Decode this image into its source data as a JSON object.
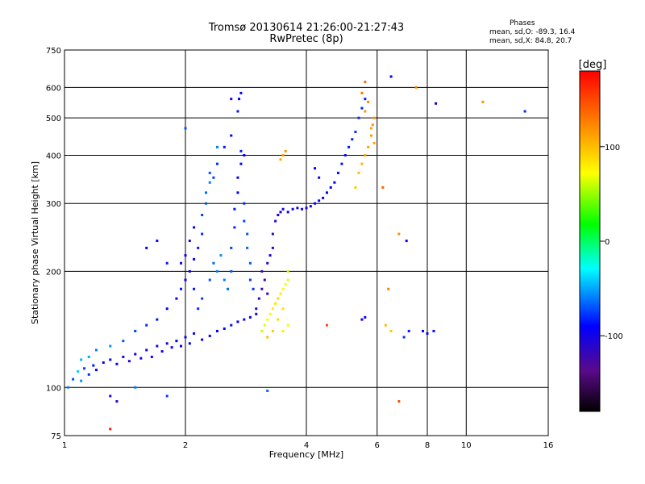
{
  "chart_data": {
    "type": "scatter",
    "title": "Tromsø 20130614 21:26:00-21:27:43",
    "subtitle": "RwPretec (8p)",
    "xlabel": "Frequency [MHz]",
    "ylabel": "Stationary phase Virtual Height [km]",
    "x_scale": "log",
    "y_scale": "log",
    "xlim": [
      1,
      16
    ],
    "ylim": [
      75,
      750
    ],
    "grid": true,
    "x_ticks": [
      1,
      2,
      4,
      6,
      8,
      10,
      16
    ],
    "x_tick_labels": [
      "1",
      "2",
      "4",
      "6",
      "8",
      "10",
      "16"
    ],
    "y_ticks": [
      75,
      100,
      200,
      300,
      400,
      500,
      600,
      750
    ],
    "y_tick_labels": [
      "75",
      "100",
      "200",
      "300",
      "400",
      "500",
      "600",
      "750"
    ],
    "stats": {
      "heading": "Phases",
      "o_label": "mean, sd,O:",
      "o_values": "-89.3, 16.4",
      "x_label": "mean, sd,X:",
      "x_values": "84.8, 20.7"
    },
    "colorbar": {
      "label": "[deg]",
      "range": [
        -180,
        180
      ],
      "ticks": [
        100,
        0,
        -100
      ],
      "tick_labels": [
        "100",
        "0",
        "-100"
      ],
      "colormap": "rainbow"
    },
    "series": [
      {
        "points": [
          [
            1.02,
            100,
            -60
          ],
          [
            1.05,
            105,
            -70
          ],
          [
            1.08,
            110,
            -40
          ],
          [
            1.1,
            104,
            -55
          ],
          [
            1.12,
            112,
            -75
          ],
          [
            1.15,
            108,
            -80
          ],
          [
            1.18,
            114,
            -85
          ],
          [
            1.2,
            111,
            -90
          ],
          [
            1.25,
            116,
            -95
          ],
          [
            1.3,
            118,
            -100
          ],
          [
            1.35,
            115,
            -95
          ],
          [
            1.4,
            120,
            -100
          ],
          [
            1.45,
            117,
            -105
          ],
          [
            1.5,
            122,
            -100
          ],
          [
            1.55,
            119,
            -95
          ],
          [
            1.6,
            125,
            -100
          ],
          [
            1.65,
            120,
            -98
          ],
          [
            1.7,
            128,
            -102
          ],
          [
            1.75,
            124,
            -96
          ],
          [
            1.8,
            130,
            -100
          ],
          [
            1.85,
            127,
            -95
          ],
          [
            1.9,
            132,
            -90
          ],
          [
            1.95,
            128,
            -92
          ],
          [
            2.0,
            135,
            -95
          ],
          [
            2.05,
            130,
            -90
          ],
          [
            2.1,
            138,
            -88
          ],
          [
            2.2,
            133,
            -92
          ],
          [
            2.3,
            136,
            -95
          ],
          [
            2.4,
            140,
            -90
          ],
          [
            2.5,
            142,
            -88
          ],
          [
            2.6,
            145,
            -85
          ],
          [
            2.7,
            148,
            -90
          ],
          [
            2.8,
            150,
            -92
          ],
          [
            2.9,
            152,
            -95
          ],
          [
            3.0,
            155,
            -98
          ],
          [
            1.1,
            118,
            -45
          ],
          [
            1.15,
            120,
            -50
          ],
          [
            1.2,
            125,
            -60
          ],
          [
            1.3,
            128,
            -55
          ],
          [
            1.4,
            132,
            -70
          ],
          [
            1.5,
            140,
            -75
          ],
          [
            1.6,
            145,
            -80
          ],
          [
            1.7,
            150,
            -85
          ],
          [
            1.8,
            160,
            -90
          ],
          [
            1.9,
            170,
            -95
          ],
          [
            1.95,
            180,
            -85
          ],
          [
            2.0,
            190,
            -90
          ],
          [
            2.05,
            200,
            -95
          ],
          [
            2.1,
            215,
            -90
          ],
          [
            2.15,
            230,
            -85
          ],
          [
            2.2,
            250,
            -80
          ],
          [
            2.2,
            280,
            -75
          ],
          [
            2.25,
            300,
            -70
          ],
          [
            2.25,
            320,
            -65
          ],
          [
            2.3,
            340,
            -60
          ],
          [
            2.3,
            360,
            -70
          ],
          [
            2.0,
            220,
            -100
          ],
          [
            2.05,
            240,
            -105
          ],
          [
            2.1,
            260,
            -95
          ],
          [
            1.95,
            210,
            -90
          ],
          [
            2.1,
            180,
            -85
          ],
          [
            2.15,
            160,
            -80
          ],
          [
            2.2,
            170,
            -75
          ],
          [
            2.3,
            190,
            -70
          ],
          [
            2.35,
            210,
            -65
          ],
          [
            2.4,
            200,
            -60
          ],
          [
            2.45,
            220,
            -55
          ],
          [
            2.5,
            190,
            -60
          ],
          [
            2.55,
            180,
            -65
          ],
          [
            2.6,
            200,
            -70
          ],
          [
            2.6,
            230,
            -75
          ],
          [
            2.65,
            260,
            -80
          ],
          [
            2.65,
            290,
            -85
          ],
          [
            2.7,
            320,
            -90
          ],
          [
            2.7,
            350,
            -95
          ],
          [
            2.75,
            380,
            -90
          ],
          [
            2.75,
            410,
            -85
          ],
          [
            2.8,
            300,
            -80
          ],
          [
            2.8,
            270,
            -75
          ],
          [
            2.85,
            250,
            -70
          ],
          [
            2.85,
            230,
            -65
          ],
          [
            2.9,
            210,
            -70
          ],
          [
            2.9,
            190,
            -75
          ],
          [
            2.95,
            180,
            -80
          ],
          [
            2.7,
            520,
            -85
          ],
          [
            2.72,
            560,
            -90
          ],
          [
            2.75,
            580,
            -95
          ],
          [
            2.6,
            450,
            -90
          ],
          [
            2.5,
            420,
            -85
          ],
          [
            2.4,
            380,
            -80
          ],
          [
            2.35,
            350,
            -75
          ],
          [
            3.0,
            160,
            -110
          ],
          [
            3.05,
            170,
            -115
          ],
          [
            3.1,
            180,
            -120
          ],
          [
            3.1,
            200,
            -125
          ],
          [
            3.15,
            190,
            -120
          ],
          [
            3.2,
            175,
            -115
          ],
          [
            3.2,
            210,
            -110
          ],
          [
            3.25,
            220,
            -105
          ],
          [
            3.3,
            230,
            -110
          ],
          [
            3.3,
            250,
            -115
          ],
          [
            3.35,
            270,
            -110
          ],
          [
            3.4,
            280,
            -105
          ],
          [
            3.45,
            285,
            -100
          ],
          [
            3.5,
            290,
            -100
          ],
          [
            3.6,
            285,
            -95
          ],
          [
            3.7,
            290,
            -98
          ],
          [
            3.8,
            292,
            -100
          ],
          [
            3.9,
            290,
            -102
          ],
          [
            4.0,
            292,
            -100
          ],
          [
            4.1,
            295,
            -98
          ],
          [
            4.2,
            300,
            -96
          ],
          [
            4.3,
            305,
            -95
          ],
          [
            4.4,
            310,
            -93
          ],
          [
            4.5,
            320,
            -92
          ],
          [
            4.6,
            330,
            -90
          ],
          [
            4.7,
            340,
            -90
          ],
          [
            4.8,
            360,
            -88
          ],
          [
            4.9,
            380,
            -86
          ],
          [
            5.0,
            400,
            -85
          ],
          [
            5.1,
            420,
            -84
          ],
          [
            5.2,
            440,
            -82
          ],
          [
            5.3,
            460,
            -80
          ],
          [
            5.4,
            500,
            -80
          ],
          [
            5.5,
            530,
            -82
          ],
          [
            5.6,
            560,
            -85
          ],
          [
            3.1,
            140,
            60
          ],
          [
            3.15,
            145,
            65
          ],
          [
            3.2,
            150,
            70
          ],
          [
            3.25,
            155,
            75
          ],
          [
            3.3,
            160,
            80
          ],
          [
            3.35,
            165,
            85
          ],
          [
            3.4,
            170,
            90
          ],
          [
            3.45,
            175,
            80
          ],
          [
            3.5,
            180,
            75
          ],
          [
            3.55,
            185,
            70
          ],
          [
            3.6,
            190,
            65
          ],
          [
            3.6,
            200,
            60
          ],
          [
            3.5,
            160,
            85
          ],
          [
            3.4,
            150,
            90
          ],
          [
            3.3,
            140,
            95
          ],
          [
            3.2,
            135,
            100
          ],
          [
            3.5,
            140,
            80
          ],
          [
            3.6,
            145,
            75
          ],
          [
            3.45,
            390,
            110
          ],
          [
            3.5,
            400,
            115
          ],
          [
            3.55,
            410,
            120
          ],
          [
            5.3,
            330,
            95
          ],
          [
            5.4,
            360,
            100
          ],
          [
            5.5,
            380,
            105
          ],
          [
            5.6,
            400,
            110
          ],
          [
            5.7,
            420,
            112
          ],
          [
            5.8,
            450,
            115
          ],
          [
            5.85,
            480,
            118
          ],
          [
            5.9,
            500,
            120
          ],
          [
            5.7,
            550,
            125
          ],
          [
            5.6,
            520,
            118
          ],
          [
            5.5,
            580,
            130
          ],
          [
            5.6,
            620,
            135
          ],
          [
            5.8,
            470,
            108
          ],
          [
            5.9,
            430,
            110
          ],
          [
            6.3,
            145,
            100
          ],
          [
            6.5,
            140,
            95
          ],
          [
            7.0,
            135,
            -80
          ],
          [
            7.2,
            140,
            -85
          ],
          [
            7.8,
            140,
            -90
          ],
          [
            8.0,
            138,
            -95
          ],
          [
            8.3,
            140,
            -88
          ],
          [
            1.3,
            95,
            -110
          ],
          [
            1.35,
            92,
            -115
          ],
          [
            1.5,
            100,
            -60
          ],
          [
            1.8,
            95,
            -75
          ],
          [
            3.2,
            98,
            -65
          ],
          [
            5.5,
            150,
            -95
          ],
          [
            5.6,
            152,
            -92
          ],
          [
            1.3,
            78,
            170
          ],
          [
            6.8,
            92,
            150
          ],
          [
            11.0,
            550,
            120
          ],
          [
            14.0,
            520,
            -80
          ],
          [
            8.4,
            545,
            -100
          ],
          [
            6.5,
            640,
            -90
          ],
          [
            7.5,
            600,
            130
          ],
          [
            4.2,
            370,
            -100
          ],
          [
            4.3,
            350,
            -95
          ],
          [
            1.6,
            230,
            -95
          ],
          [
            1.7,
            240,
            -90
          ],
          [
            1.8,
            210,
            -85
          ],
          [
            2.0,
            470,
            -70
          ],
          [
            2.4,
            420,
            -60
          ],
          [
            6.4,
            180,
            125
          ],
          [
            6.8,
            250,
            120
          ],
          [
            7.1,
            240,
            -100
          ],
          [
            4.5,
            145,
            150
          ],
          [
            6.2,
            330,
            140
          ],
          [
            2.6,
            560,
            -105
          ],
          [
            2.8,
            400,
            -90
          ]
        ]
      }
    ]
  }
}
